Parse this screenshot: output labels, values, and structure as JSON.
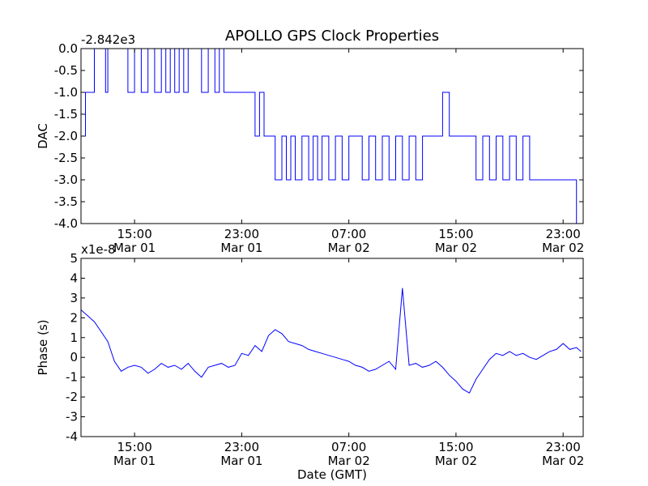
{
  "chart_data": [
    {
      "type": "line",
      "title": "APOLLO GPS Clock Properties",
      "ylabel": "DAC",
      "xlabel": "",
      "offset_label": "-2.842e3",
      "ylim": [
        -4.0,
        0.0
      ],
      "yticks": [
        "0.0",
        "-0.5",
        "-1.0",
        "-1.5",
        "-2.0",
        "-2.5",
        "-3.0",
        "-3.5",
        "-4.0"
      ],
      "xlim": [
        "Mar 01 11:00",
        "Mar 03 00:30"
      ],
      "xticks": [
        {
          "time": "15:00",
          "date": "Mar 01"
        },
        {
          "time": "23:00",
          "date": "Mar 01"
        },
        {
          "time": "07:00",
          "date": "Mar 02"
        },
        {
          "time": "15:00",
          "date": "Mar 02"
        },
        {
          "time": "23:00",
          "date": "Mar 02"
        }
      ],
      "line_color": "#0000ff",
      "grid": false,
      "series": [
        {
          "x": [
            "Mar 01 11:00",
            "Mar 01 11:20",
            "Mar 01 11:40",
            "Mar 01 12:00",
            "Mar 01 12:50",
            "Mar 01 13:00",
            "Mar 01 13:30",
            "Mar 01 14:30",
            "Mar 01 15:00",
            "Mar 01 15:30",
            "Mar 01 16:00",
            "Mar 01 16:30",
            "Mar 01 17:00",
            "Mar 01 17:20",
            "Mar 01 17:40",
            "Mar 01 18:00",
            "Mar 01 18:20",
            "Mar 01 18:40",
            "Mar 01 19:00",
            "Mar 01 19:30",
            "Mar 01 20:00",
            "Mar 01 20:30",
            "Mar 01 21:00",
            "Mar 01 21:20",
            "Mar 01 21:40",
            "Mar 01 22:00",
            "Mar 01 22:20",
            "Mar 01 22:40",
            "Mar 01 23:00",
            "Mar 01 23:30",
            "Mar 02 00:00",
            "Mar 02 00:20",
            "Mar 02 00:40",
            "Mar 02 01:00",
            "Mar 02 01:30",
            "Mar 02 02:00",
            "Mar 02 02:20",
            "Mar 02 02:40",
            "Mar 02 03:00",
            "Mar 02 03:30",
            "Mar 02 04:00",
            "Mar 02 04:20",
            "Mar 02 04:40",
            "Mar 02 05:00",
            "Mar 02 05:30",
            "Mar 02 06:00",
            "Mar 02 06:30",
            "Mar 02 07:00",
            "Mar 02 07:30",
            "Mar 02 08:00",
            "Mar 02 08:30",
            "Mar 02 09:00",
            "Mar 02 09:30",
            "Mar 02 10:00",
            "Mar 02 10:30",
            "Mar 02 11:00",
            "Mar 02 11:30",
            "Mar 02 12:00",
            "Mar 02 12:30",
            "Mar 02 13:00",
            "Mar 02 13:30",
            "Mar 02 14:00",
            "Mar 02 14:30",
            "Mar 02 15:00",
            "Mar 02 15:30",
            "Mar 02 16:00",
            "Mar 02 16:30",
            "Mar 02 17:00",
            "Mar 02 17:30",
            "Mar 02 18:00",
            "Mar 02 18:30",
            "Mar 02 19:00",
            "Mar 02 19:30",
            "Mar 02 20:00",
            "Mar 02 20:30",
            "Mar 02 21:00",
            "Mar 02 21:30",
            "Mar 02 22:00",
            "Mar 02 22:30",
            "Mar 02 23:00",
            "Mar 02 23:20",
            "Mar 02 23:40",
            "Mar 03 00:00",
            "Mar 03 00:20"
          ],
          "values": [
            -2.0,
            -1.0,
            -1.0,
            -0.0,
            -1.0,
            -0.0,
            -0.0,
            -1.0,
            -0.0,
            -1.0,
            -0.0,
            -1.0,
            -0.0,
            -1.0,
            -0.0,
            -1.0,
            -0.0,
            -1.0,
            -0.0,
            -0.0,
            -1.0,
            -0.0,
            -1.0,
            -0.0,
            -1.0,
            -1.0,
            -1.0,
            -1.0,
            -1.0,
            -1.0,
            -2.0,
            -1.0,
            -2.0,
            -2.0,
            -3.0,
            -2.0,
            -3.0,
            -2.0,
            -3.0,
            -2.0,
            -3.0,
            -2.0,
            -3.0,
            -2.0,
            -3.0,
            -2.0,
            -3.0,
            -2.0,
            -2.0,
            -3.0,
            -2.0,
            -3.0,
            -2.0,
            -3.0,
            -2.0,
            -3.0,
            -2.0,
            -3.0,
            -2.0,
            -2.0,
            -2.0,
            -1.0,
            -2.0,
            -2.0,
            -2.0,
            -2.0,
            -3.0,
            -2.0,
            -3.0,
            -2.0,
            -3.0,
            -2.0,
            -3.0,
            -2.0,
            -3.0,
            -3.0,
            -3.0,
            -3.0,
            -3.0,
            -3.0,
            -3.0,
            -3.0,
            -4.0,
            -4.0
          ]
        }
      ]
    },
    {
      "type": "line",
      "title": "",
      "ylabel": "Phase (s)",
      "xlabel": "Date (GMT)",
      "offset_label": "x1e-8",
      "ylim": [
        -4,
        5
      ],
      "yticks": [
        "5",
        "4",
        "3",
        "2",
        "1",
        "0",
        "-1",
        "-2",
        "-3",
        "-4"
      ],
      "xlim": [
        "Mar 01 11:00",
        "Mar 03 00:30"
      ],
      "xticks": [
        {
          "time": "15:00",
          "date": "Mar 01"
        },
        {
          "time": "23:00",
          "date": "Mar 01"
        },
        {
          "time": "07:00",
          "date": "Mar 02"
        },
        {
          "time": "15:00",
          "date": "Mar 02"
        },
        {
          "time": "23:00",
          "date": "Mar 02"
        }
      ],
      "line_color": "#0000ff",
      "grid": false,
      "series": [
        {
          "x": [
            "Mar 01 11:00",
            "Mar 01 11:30",
            "Mar 01 12:00",
            "Mar 01 12:30",
            "Mar 01 13:00",
            "Mar 01 13:30",
            "Mar 01 14:00",
            "Mar 01 14:30",
            "Mar 01 15:00",
            "Mar 01 15:30",
            "Mar 01 16:00",
            "Mar 01 16:30",
            "Mar 01 17:00",
            "Mar 01 17:30",
            "Mar 01 18:00",
            "Mar 01 18:30",
            "Mar 01 19:00",
            "Mar 01 19:30",
            "Mar 01 20:00",
            "Mar 01 20:30",
            "Mar 01 21:00",
            "Mar 01 21:30",
            "Mar 01 22:00",
            "Mar 01 22:30",
            "Mar 01 23:00",
            "Mar 01 23:30",
            "Mar 02 00:00",
            "Mar 02 00:30",
            "Mar 02 01:00",
            "Mar 02 01:30",
            "Mar 02 02:00",
            "Mar 02 02:30",
            "Mar 02 03:00",
            "Mar 02 03:30",
            "Mar 02 04:00",
            "Mar 02 04:30",
            "Mar 02 05:00",
            "Mar 02 05:30",
            "Mar 02 06:00",
            "Mar 02 06:30",
            "Mar 02 07:00",
            "Mar 02 07:30",
            "Mar 02 08:00",
            "Mar 02 08:30",
            "Mar 02 09:00",
            "Mar 02 09:30",
            "Mar 02 10:00",
            "Mar 02 10:30",
            "Mar 02 11:00",
            "Mar 02 11:30",
            "Mar 02 12:00",
            "Mar 02 12:30",
            "Mar 02 13:00",
            "Mar 02 13:30",
            "Mar 02 14:00",
            "Mar 02 14:30",
            "Mar 02 15:00",
            "Mar 02 15:30",
            "Mar 02 16:00",
            "Mar 02 16:30",
            "Mar 02 17:00",
            "Mar 02 17:30",
            "Mar 02 18:00",
            "Mar 02 18:30",
            "Mar 02 19:00",
            "Mar 02 19:30",
            "Mar 02 20:00",
            "Mar 02 20:30",
            "Mar 02 21:00",
            "Mar 02 21:30",
            "Mar 02 22:00",
            "Mar 02 22:30",
            "Mar 02 23:00",
            "Mar 02 23:30",
            "Mar 03 00:00",
            "Mar 03 00:20"
          ],
          "values": [
            2.4,
            2.1,
            1.8,
            1.3,
            0.8,
            -0.2,
            -0.7,
            -0.5,
            -0.4,
            -0.5,
            -0.8,
            -0.6,
            -0.3,
            -0.5,
            -0.4,
            -0.6,
            -0.3,
            -0.7,
            -1.0,
            -0.5,
            -0.4,
            -0.3,
            -0.5,
            -0.4,
            0.2,
            0.1,
            0.6,
            0.3,
            1.1,
            1.4,
            1.2,
            0.8,
            0.7,
            0.6,
            0.4,
            0.3,
            0.2,
            0.1,
            0.0,
            -0.1,
            -0.2,
            -0.4,
            -0.5,
            -0.7,
            -0.6,
            -0.4,
            -0.2,
            -0.6,
            3.5,
            -0.4,
            -0.3,
            -0.5,
            -0.4,
            -0.2,
            -0.5,
            -0.9,
            -1.2,
            -1.6,
            -1.8,
            -1.1,
            -0.6,
            -0.1,
            0.2,
            0.1,
            0.3,
            0.1,
            0.2,
            0.0,
            -0.1,
            0.1,
            0.3,
            0.4,
            0.7,
            0.4,
            0.5,
            0.3
          ]
        }
      ]
    }
  ]
}
